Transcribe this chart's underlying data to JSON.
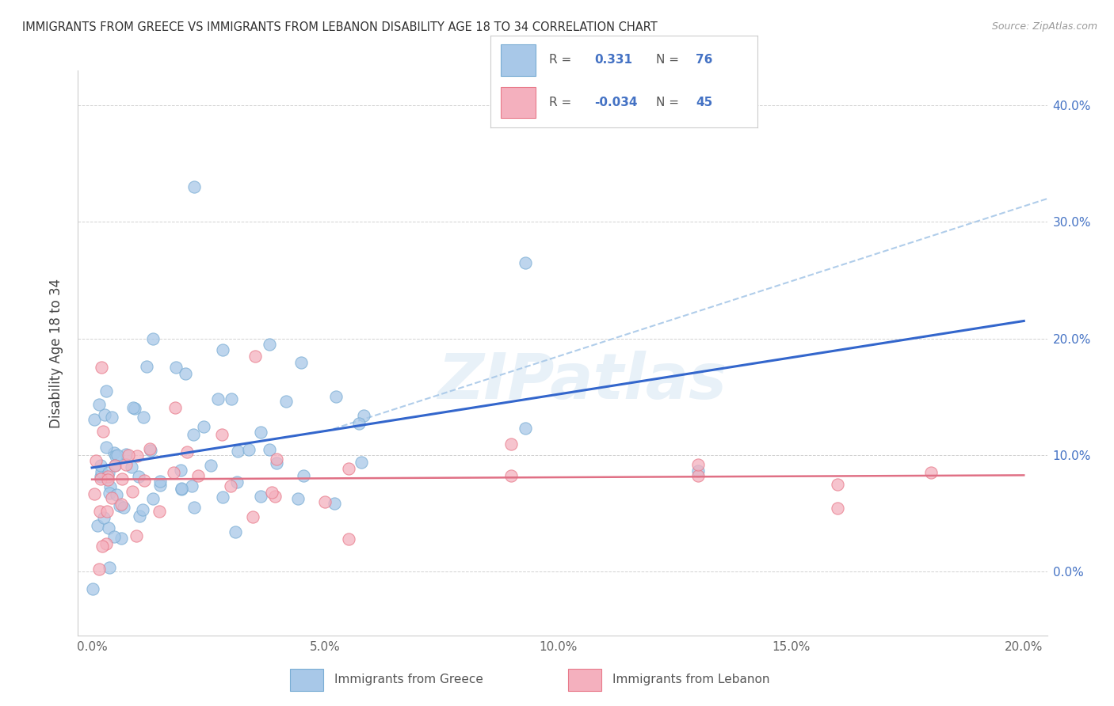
{
  "title": "IMMIGRANTS FROM GREECE VS IMMIGRANTS FROM LEBANON DISABILITY AGE 18 TO 34 CORRELATION CHART",
  "source": "Source: ZipAtlas.com",
  "ylabel_label": "Disability Age 18 to 34",
  "greece_color": "#a8c8e8",
  "greece_edge": "#7aadd4",
  "lebanon_color": "#f4b0be",
  "lebanon_edge": "#e87a8a",
  "greece_line_color": "#3366cc",
  "lebanon_line_color": "#e07085",
  "dashed_line_color": "#a8c8e8",
  "xlim": [
    0.0,
    0.205
  ],
  "ylim": [
    -0.055,
    0.43
  ],
  "yticks": [
    0.0,
    0.1,
    0.2,
    0.3,
    0.4
  ],
  "xticks": [
    0.0,
    0.05,
    0.1,
    0.15,
    0.2
  ],
  "right_yticklabels": [
    "0.0%",
    "10.0%",
    "20.0%",
    "30.0%",
    "40.0%"
  ],
  "xticklabels": [
    "0.0%",
    "5.0%",
    "10.0%",
    "15.0%",
    "20.0%"
  ],
  "R_greece": "0.331",
  "N_greece": "76",
  "R_lebanon": "-0.034",
  "N_lebanon": "45",
  "watermark": "ZIPatlas",
  "greece_label": "Immigrants from Greece",
  "lebanon_label": "Immigrants from Lebanon"
}
